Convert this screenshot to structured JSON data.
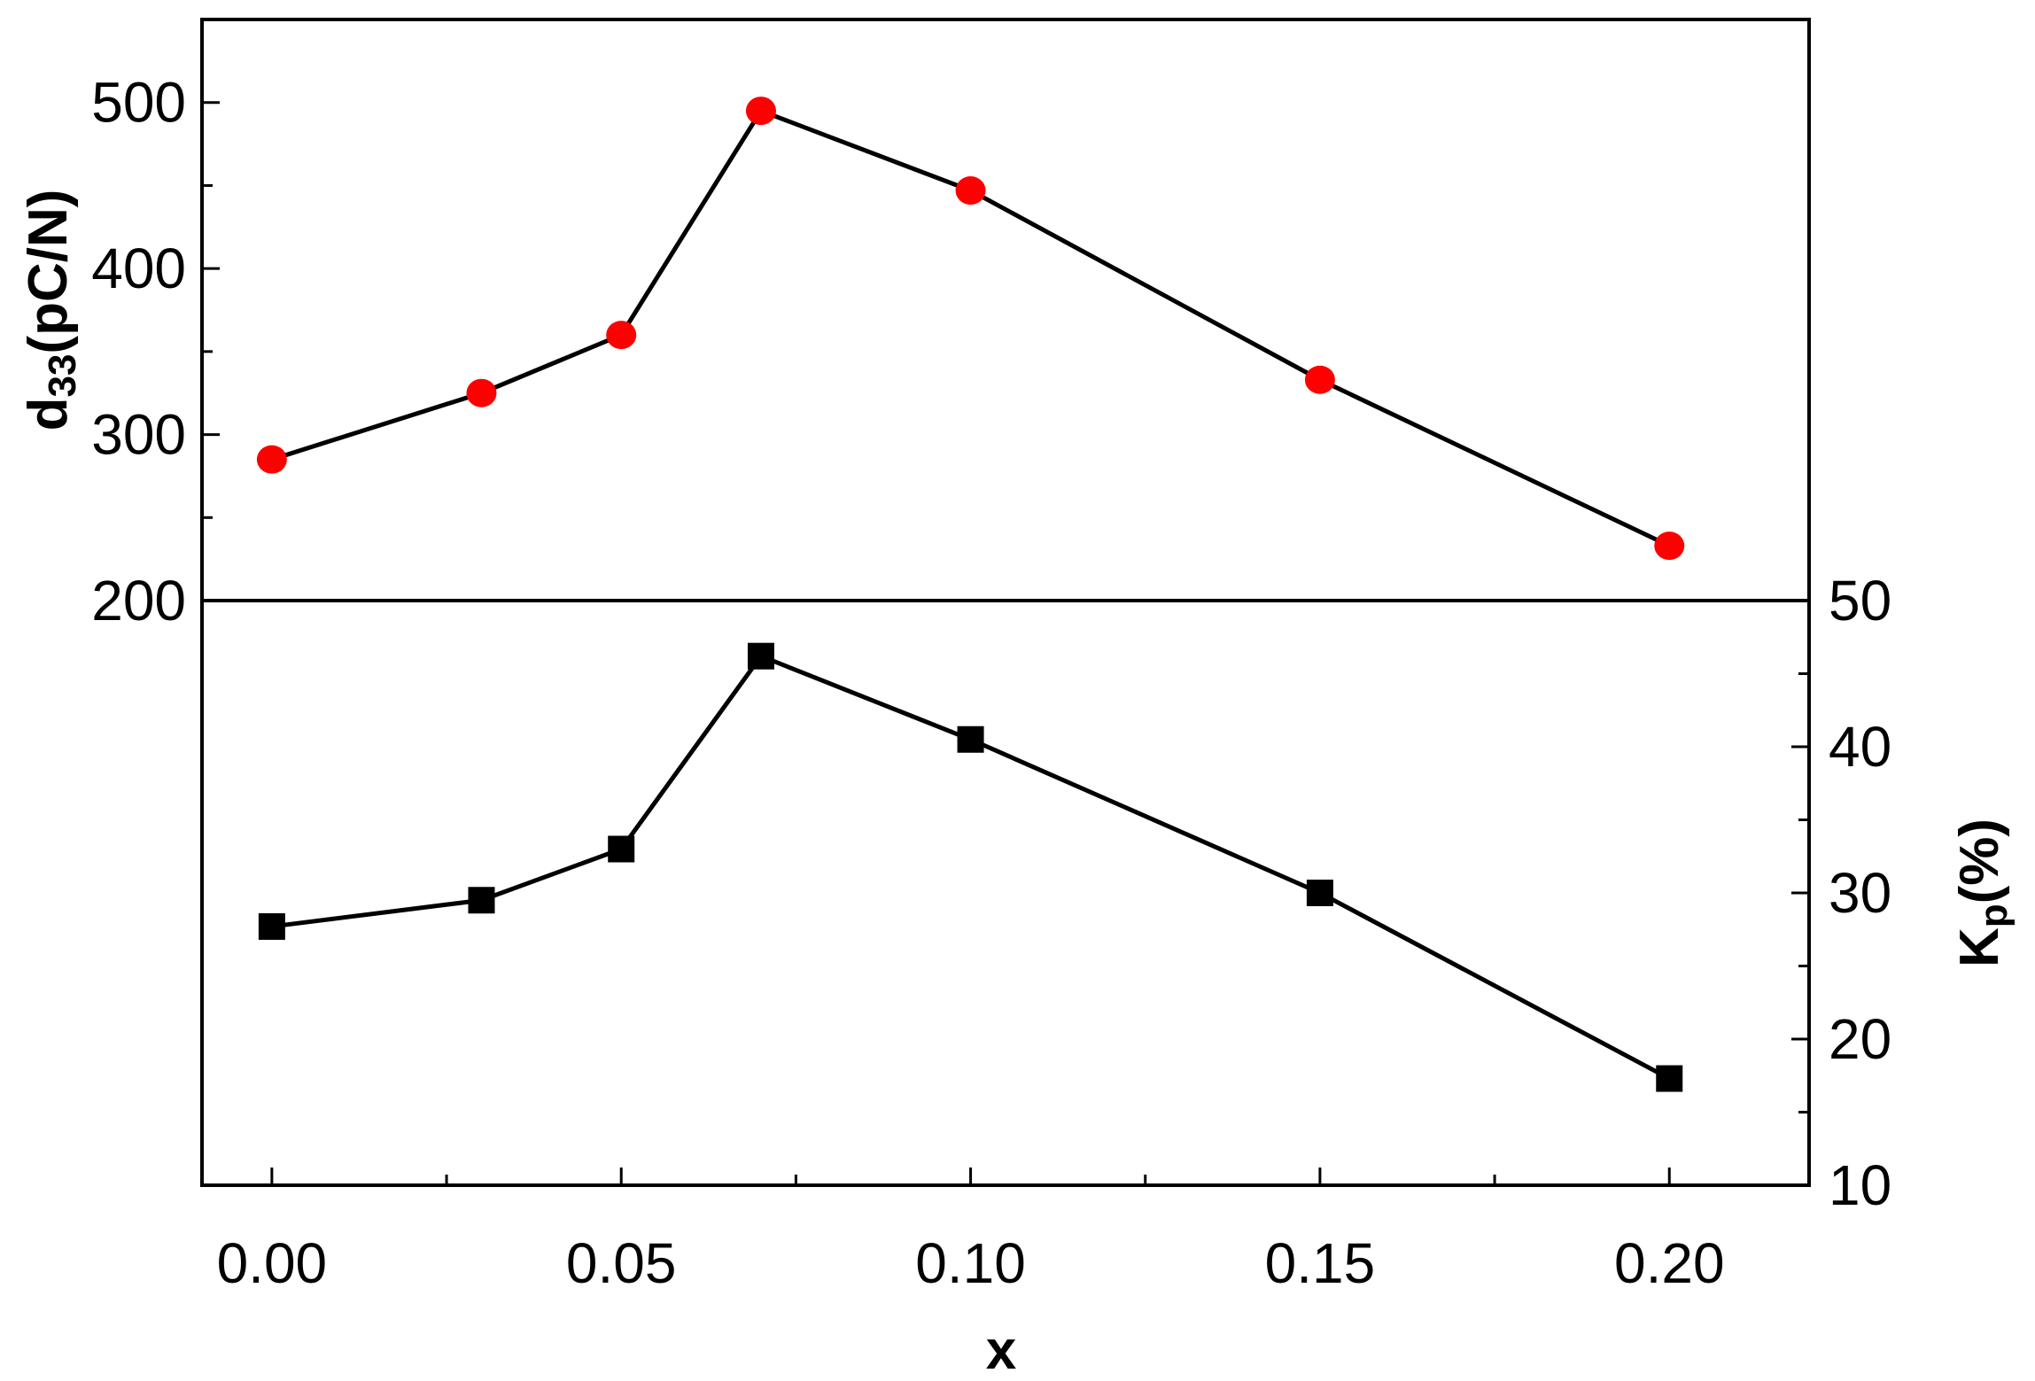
{
  "chart_data": {
    "type": "line",
    "x": [
      0.0,
      0.03,
      0.05,
      0.07,
      0.1,
      0.15,
      0.2
    ],
    "xlabel": "x",
    "xlim": [
      -0.01,
      0.22
    ],
    "xticks": [
      0.0,
      0.05,
      0.1,
      0.15,
      0.2
    ],
    "xtick_labels": [
      "0.00",
      "0.05",
      "0.10",
      "0.15",
      "0.20"
    ],
    "xminor_ticks": [
      0.025,
      0.075,
      0.125,
      0.175
    ],
    "panels": [
      {
        "position": "top",
        "ylabel_main": "d",
        "ylabel_sub": "33",
        "ylabel_rest": "(pC/N)",
        "ylim": [
          200,
          550
        ],
        "yticks": [
          200,
          300,
          400,
          500
        ],
        "ytick_labels": [
          "200",
          "300",
          "400",
          "500"
        ],
        "yminor_ticks": [
          250,
          350,
          450
        ],
        "axis_side": "left",
        "series": [
          {
            "values": [
              285,
              325,
              360,
              495,
              447,
              333,
              233
            ],
            "marker": "circle",
            "color": "#ff0000"
          }
        ]
      },
      {
        "position": "bottom",
        "ylabel_main": "K",
        "ylabel_sub": "p",
        "ylabel_rest": "(%)",
        "ylim": [
          10,
          50
        ],
        "yticks": [
          10,
          20,
          30,
          40,
          50
        ],
        "ytick_labels": [
          "10",
          "20",
          "30",
          "40",
          "50"
        ],
        "yminor_ticks": [
          15,
          25,
          35,
          45
        ],
        "axis_side": "right",
        "series": [
          {
            "values": [
              27.7,
              29.5,
              33.0,
              46.2,
              40.5,
              30.0,
              17.3
            ],
            "marker": "square",
            "color": "#000000"
          }
        ]
      }
    ],
    "grid": false,
    "legend": "none"
  }
}
